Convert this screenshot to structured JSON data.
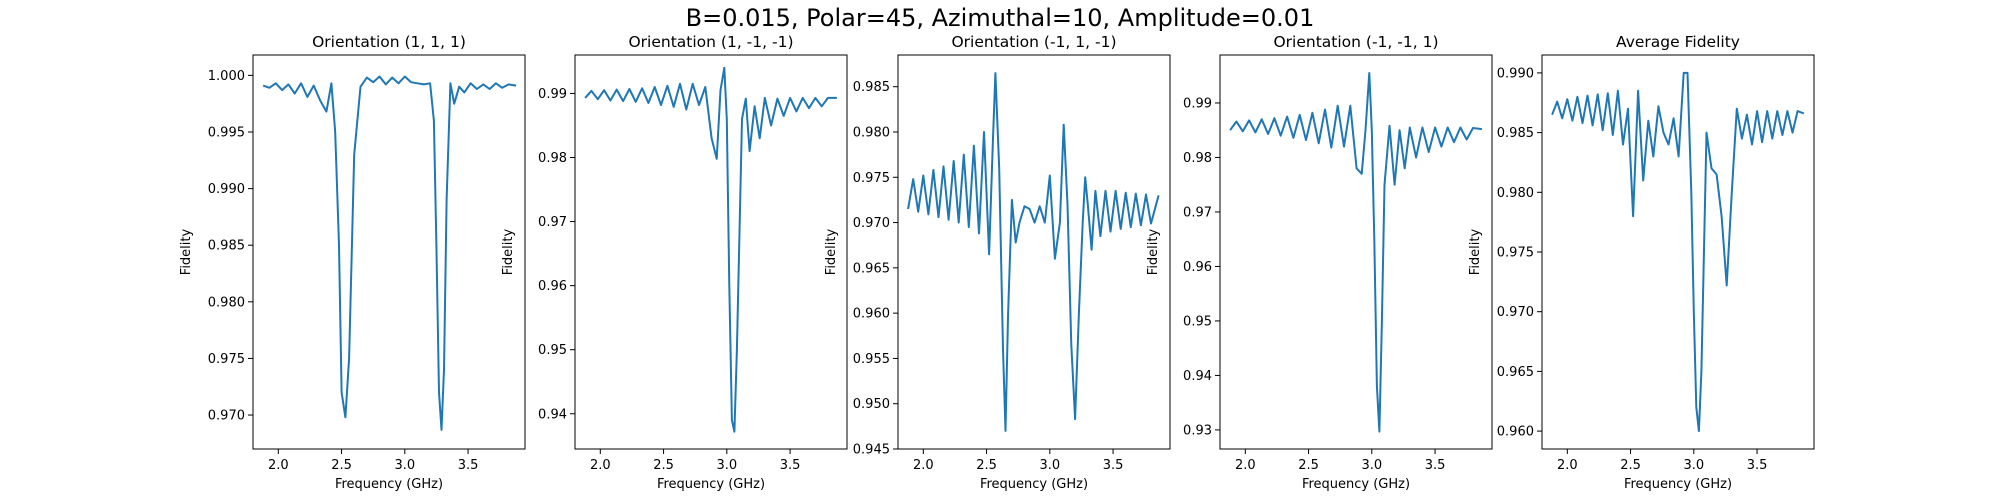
{
  "figure": {
    "title": "B=0.015, Polar=45, Azimuthal=10, Amplitude=0.01"
  },
  "chart_data": [
    {
      "type": "line",
      "title": "Orientation (1, 1, 1)",
      "xlabel": "Frequency (GHz)",
      "ylabel": "Fidelity",
      "xlim": [
        1.8,
        3.95
      ],
      "ylim": [
        0.967,
        1.0018
      ],
      "xticks": [
        2.0,
        2.5,
        3.0,
        3.5
      ],
      "yticks": [
        0.97,
        0.975,
        0.98,
        0.985,
        0.99,
        0.995,
        1.0
      ],
      "ytick_labels": [
        "0.970",
        "0.975",
        "0.980",
        "0.985",
        "0.990",
        "0.995",
        "1.000"
      ],
      "grid": false,
      "color": "#1f77b4",
      "series": [
        {
          "x": [
            1.88,
            1.93,
            1.98,
            2.03,
            2.08,
            2.13,
            2.18,
            2.23,
            2.28,
            2.33,
            2.38,
            2.42,
            2.45,
            2.48,
            2.5,
            2.53,
            2.56,
            2.6,
            2.65,
            2.7,
            2.75,
            2.8,
            2.85,
            2.9,
            2.95,
            3.0,
            3.05,
            3.1,
            3.15,
            3.2,
            3.23,
            3.25,
            3.27,
            3.29,
            3.31,
            3.33,
            3.36,
            3.39,
            3.43,
            3.47,
            3.52,
            3.57,
            3.62,
            3.67,
            3.72,
            3.77,
            3.82,
            3.88
          ],
          "y": [
            0.9991,
            0.9989,
            0.9993,
            0.9987,
            0.9992,
            0.9984,
            0.9993,
            0.9981,
            0.9991,
            0.9978,
            0.9968,
            0.9993,
            0.995,
            0.985,
            0.972,
            0.9698,
            0.975,
            0.993,
            0.999,
            0.9998,
            0.9994,
            0.9999,
            0.9992,
            0.9998,
            0.9993,
            0.9999,
            0.9994,
            0.9993,
            0.9992,
            0.9993,
            0.996,
            0.985,
            0.972,
            0.9687,
            0.974,
            0.989,
            0.9993,
            0.9975,
            0.999,
            0.9985,
            0.9993,
            0.9988,
            0.9992,
            0.9988,
            0.9993,
            0.9989,
            0.9992,
            0.9991
          ]
        }
      ]
    },
    {
      "type": "line",
      "title": "Orientation (1, -1, -1)",
      "xlabel": "Frequency (GHz)",
      "ylabel": "Fidelity",
      "xlim": [
        1.8,
        3.95
      ],
      "ylim": [
        0.9345,
        0.996
      ],
      "xticks": [
        2.0,
        2.5,
        3.0,
        3.5
      ],
      "yticks": [
        0.94,
        0.95,
        0.96,
        0.97,
        0.98,
        0.99
      ],
      "ytick_labels": [
        "0.94",
        "0.95",
        "0.96",
        "0.97",
        "0.98",
        "0.99"
      ],
      "grid": false,
      "color": "#1f77b4",
      "series": [
        {
          "x": [
            1.88,
            1.93,
            1.98,
            2.03,
            2.08,
            2.13,
            2.18,
            2.23,
            2.28,
            2.33,
            2.38,
            2.43,
            2.48,
            2.53,
            2.58,
            2.63,
            2.68,
            2.73,
            2.78,
            2.83,
            2.88,
            2.92,
            2.95,
            2.98,
            3.0,
            3.02,
            3.04,
            3.06,
            3.08,
            3.12,
            3.15,
            3.18,
            3.22,
            3.26,
            3.3,
            3.35,
            3.4,
            3.45,
            3.5,
            3.55,
            3.6,
            3.65,
            3.7,
            3.75,
            3.8,
            3.87
          ],
          "y": [
            0.9893,
            0.9904,
            0.9891,
            0.9905,
            0.9889,
            0.9906,
            0.9888,
            0.9907,
            0.9887,
            0.9908,
            0.9885,
            0.991,
            0.9882,
            0.9912,
            0.9879,
            0.9915,
            0.9875,
            0.9915,
            0.9882,
            0.991,
            0.983,
            0.9798,
            0.9905,
            0.994,
            0.986,
            0.96,
            0.939,
            0.9372,
            0.95,
            0.986,
            0.9892,
            0.981,
            0.988,
            0.983,
            0.9893,
            0.985,
            0.9892,
            0.9865,
            0.9893,
            0.9872,
            0.9893,
            0.9877,
            0.9893,
            0.988,
            0.9893,
            0.9893
          ]
        }
      ]
    },
    {
      "type": "line",
      "title": "Orientation (-1, 1, -1)",
      "xlabel": "Frequency (GHz)",
      "ylabel": "Fidelity",
      "xlim": [
        1.8,
        3.95
      ],
      "ylim": [
        0.945,
        0.9885
      ],
      "xticks": [
        2.0,
        2.5,
        3.0,
        3.5
      ],
      "yticks": [
        0.945,
        0.95,
        0.955,
        0.96,
        0.965,
        0.97,
        0.975,
        0.98,
        0.985
      ],
      "ytick_labels": [
        "0.945",
        "0.950",
        "0.955",
        "0.960",
        "0.965",
        "0.970",
        "0.975",
        "0.980",
        "0.985"
      ],
      "grid": false,
      "color": "#1f77b4",
      "series": [
        {
          "x": [
            1.88,
            1.92,
            1.96,
            2.0,
            2.04,
            2.08,
            2.12,
            2.16,
            2.2,
            2.24,
            2.28,
            2.32,
            2.36,
            2.4,
            2.44,
            2.48,
            2.52,
            2.55,
            2.57,
            2.6,
            2.63,
            2.65,
            2.67,
            2.7,
            2.73,
            2.76,
            2.8,
            2.84,
            2.88,
            2.92,
            2.96,
            3.0,
            3.04,
            3.08,
            3.11,
            3.14,
            3.17,
            3.2,
            3.23,
            3.26,
            3.28,
            3.3,
            3.33,
            3.36,
            3.4,
            3.44,
            3.48,
            3.52,
            3.56,
            3.6,
            3.64,
            3.68,
            3.72,
            3.76,
            3.8,
            3.86
          ],
          "y": [
            0.9715,
            0.9748,
            0.9712,
            0.9752,
            0.9709,
            0.9758,
            0.9706,
            0.9762,
            0.9703,
            0.9768,
            0.97,
            0.9775,
            0.9695,
            0.9785,
            0.9688,
            0.98,
            0.9665,
            0.979,
            0.9865,
            0.976,
            0.956,
            0.947,
            0.96,
            0.9725,
            0.9678,
            0.97,
            0.9718,
            0.9715,
            0.97,
            0.9718,
            0.97,
            0.9752,
            0.966,
            0.97,
            0.9808,
            0.972,
            0.9565,
            0.9483,
            0.96,
            0.97,
            0.975,
            0.972,
            0.967,
            0.9735,
            0.9685,
            0.9735,
            0.969,
            0.9735,
            0.9693,
            0.9733,
            0.9695,
            0.9732,
            0.9697,
            0.9731,
            0.9699,
            0.973
          ]
        }
      ]
    },
    {
      "type": "line",
      "title": "Orientation (-1, -1, 1)",
      "xlabel": "Frequency (GHz)",
      "ylabel": "Fidelity",
      "xlim": [
        1.8,
        3.95
      ],
      "ylim": [
        0.9265,
        0.9988
      ],
      "xticks": [
        2.0,
        2.5,
        3.0,
        3.5
      ],
      "yticks": [
        0.93,
        0.94,
        0.95,
        0.96,
        0.97,
        0.98,
        0.99
      ],
      "ytick_labels": [
        "0.93",
        "0.94",
        "0.95",
        "0.96",
        "0.97",
        "0.98",
        "0.99"
      ],
      "grid": false,
      "color": "#1f77b4",
      "series": [
        {
          "x": [
            1.88,
            1.93,
            1.98,
            2.03,
            2.08,
            2.13,
            2.18,
            2.23,
            2.28,
            2.33,
            2.38,
            2.43,
            2.48,
            2.53,
            2.58,
            2.63,
            2.68,
            2.73,
            2.78,
            2.83,
            2.88,
            2.92,
            2.95,
            2.98,
            3.0,
            3.02,
            3.04,
            3.06,
            3.08,
            3.1,
            3.14,
            3.18,
            3.22,
            3.26,
            3.3,
            3.35,
            3.4,
            3.45,
            3.5,
            3.55,
            3.6,
            3.65,
            3.7,
            3.75,
            3.8,
            3.87
          ],
          "y": [
            0.985,
            0.9866,
            0.9848,
            0.9868,
            0.9846,
            0.987,
            0.9843,
            0.9872,
            0.984,
            0.9875,
            0.9836,
            0.9878,
            0.9832,
            0.9882,
            0.9826,
            0.9888,
            0.9818,
            0.9895,
            0.982,
            0.9895,
            0.978,
            0.977,
            0.985,
            0.9955,
            0.985,
            0.965,
            0.938,
            0.9297,
            0.95,
            0.975,
            0.9858,
            0.975,
            0.985,
            0.978,
            0.9855,
            0.98,
            0.9855,
            0.981,
            0.9855,
            0.982,
            0.9855,
            0.9828,
            0.9855,
            0.9833,
            0.9854,
            0.9852
          ]
        }
      ]
    },
    {
      "type": "line",
      "title": "Average Fidelity",
      "xlabel": "Frequency (GHz)",
      "ylabel": "Fidelity",
      "xlim": [
        1.8,
        3.95
      ],
      "ylim": [
        0.9585,
        0.9915
      ],
      "xticks": [
        2.0,
        2.5,
        3.0,
        3.5
      ],
      "yticks": [
        0.96,
        0.965,
        0.97,
        0.975,
        0.98,
        0.985,
        0.99
      ],
      "ytick_labels": [
        "0.960",
        "0.965",
        "0.970",
        "0.975",
        "0.980",
        "0.985",
        "0.990"
      ],
      "grid": false,
      "color": "#1f77b4",
      "series": [
        {
          "x": [
            1.88,
            1.92,
            1.96,
            2.0,
            2.04,
            2.08,
            2.12,
            2.16,
            2.2,
            2.24,
            2.28,
            2.32,
            2.36,
            2.4,
            2.44,
            2.48,
            2.52,
            2.56,
            2.6,
            2.64,
            2.68,
            2.72,
            2.76,
            2.8,
            2.84,
            2.88,
            2.92,
            2.95,
            2.98,
            3.0,
            3.02,
            3.04,
            3.06,
            3.1,
            3.14,
            3.18,
            3.22,
            3.26,
            3.3,
            3.34,
            3.38,
            3.42,
            3.46,
            3.5,
            3.54,
            3.58,
            3.62,
            3.66,
            3.7,
            3.74,
            3.78,
            3.82,
            3.87
          ],
          "y": [
            0.9865,
            0.9876,
            0.9862,
            0.9878,
            0.986,
            0.988,
            0.9858,
            0.9881,
            0.9856,
            0.9882,
            0.9852,
            0.9883,
            0.9848,
            0.9885,
            0.984,
            0.987,
            0.978,
            0.9885,
            0.981,
            0.986,
            0.983,
            0.9872,
            0.985,
            0.984,
            0.9862,
            0.983,
            0.99,
            0.99,
            0.98,
            0.97,
            0.962,
            0.96,
            0.965,
            0.985,
            0.982,
            0.9815,
            0.978,
            0.9722,
            0.98,
            0.987,
            0.9845,
            0.9865,
            0.984,
            0.9868,
            0.9842,
            0.9868,
            0.9845,
            0.9868,
            0.9848,
            0.9868,
            0.985,
            0.9868,
            0.9866
          ]
        }
      ]
    }
  ]
}
